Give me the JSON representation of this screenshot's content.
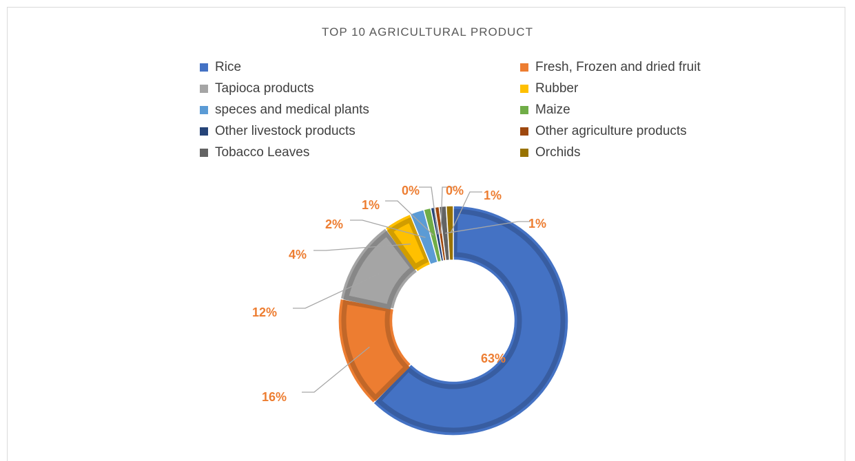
{
  "chart_data": {
    "type": "pie",
    "title": "TOP 10 AGRICULTURAL PRODUCT",
    "series": [
      {
        "categories": [
          "Rice",
          "Fresh, Frozen and dried fruit",
          "Tapioca products",
          "Rubber",
          "speces and medical plants",
          "Maize",
          "Other livestock products",
          "Other agriculture products",
          "Tobacco Leaves",
          "Orchids"
        ],
        "values": [
          63,
          16,
          12,
          4,
          2,
          1,
          0,
          0,
          1,
          1
        ],
        "labels": [
          "63%",
          "16%",
          "12%",
          "4%",
          "2%",
          "1%",
          "0%",
          "0%",
          "1%",
          "1%"
        ],
        "colors": [
          "#4472c4",
          "#ed7d31",
          "#a5a5a5",
          "#ffc000",
          "#5b9bd5",
          "#70ad47",
          "#264478",
          "#9e480e",
          "#636363",
          "#997300"
        ]
      }
    ],
    "legend": "top",
    "label_color": "#ed7d31",
    "hole": "doughnut"
  }
}
